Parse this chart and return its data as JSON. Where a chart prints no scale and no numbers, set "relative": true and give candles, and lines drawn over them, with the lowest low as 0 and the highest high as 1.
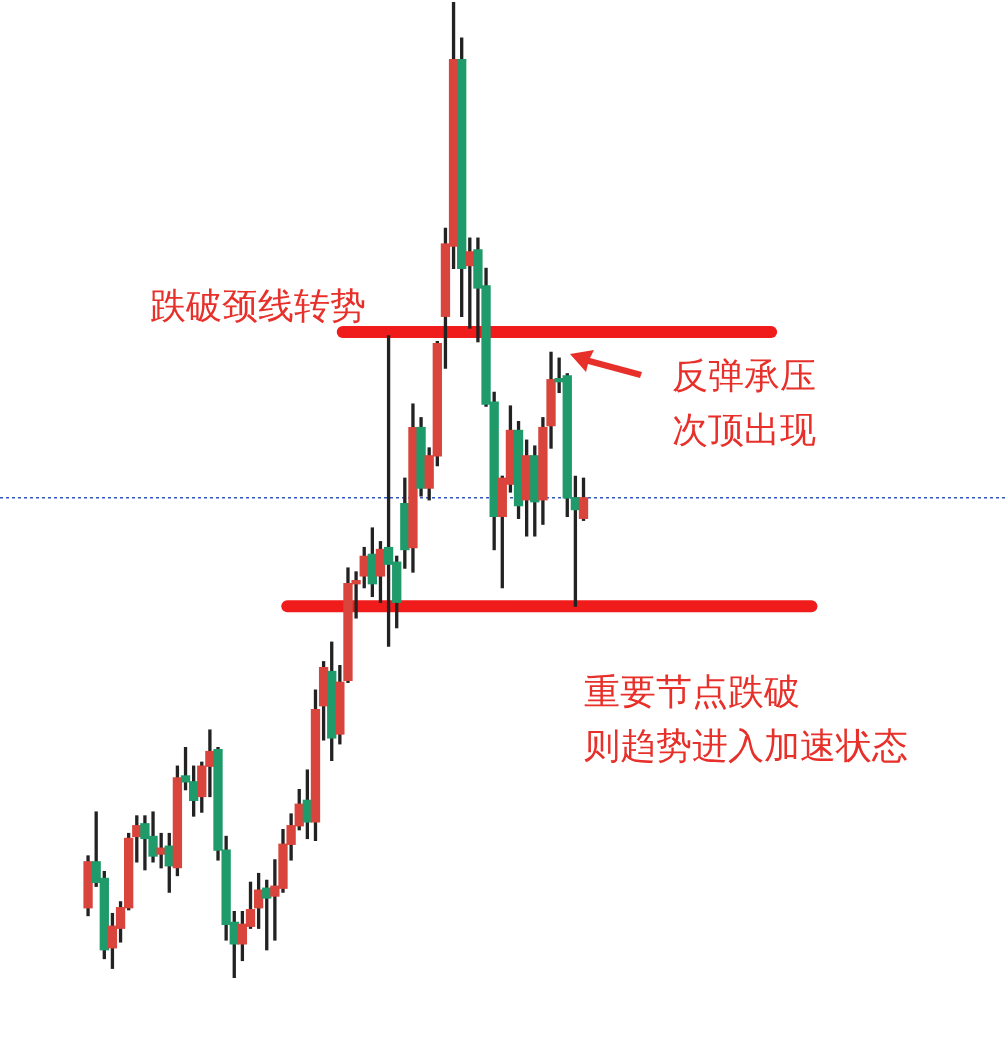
{
  "chart_data": {
    "type": "candlestick",
    "relative": true,
    "categories": [
      null,
      null,
      null,
      null,
      null,
      null,
      null,
      null,
      null,
      null,
      null,
      null,
      null,
      null,
      null,
      null,
      null,
      null,
      null,
      null,
      null,
      null,
      null,
      null,
      null,
      null,
      null,
      null,
      null,
      null,
      null,
      null,
      null,
      null,
      null,
      null,
      null,
      null,
      null,
      null,
      null,
      null,
      null,
      null,
      null,
      null,
      null,
      null,
      null,
      null,
      null,
      null,
      null,
      null,
      null,
      null,
      null,
      null,
      null,
      null,
      null,
      null
    ],
    "ohlc": [
      [
        0.072,
        0.125,
        0.064,
        0.119
      ],
      [
        0.119,
        0.17,
        0.094,
        0.098
      ],
      [
        0.102,
        0.109,
        0.02,
        0.029
      ],
      [
        0.031,
        0.066,
        0.01,
        0.053
      ],
      [
        0.051,
        0.078,
        0.037,
        0.072
      ],
      [
        0.072,
        0.148,
        0.07,
        0.143
      ],
      [
        0.145,
        0.166,
        0.119,
        0.156
      ],
      [
        0.158,
        0.166,
        0.111,
        0.143
      ],
      [
        0.145,
        0.17,
        0.119,
        0.125
      ],
      [
        0.127,
        0.148,
        0.113,
        0.133
      ],
      [
        0.135,
        0.148,
        0.088,
        0.115
      ],
      [
        0.113,
        0.217,
        0.105,
        0.205
      ],
      [
        0.207,
        0.236,
        0.193,
        0.201
      ],
      [
        0.201,
        0.217,
        0.166,
        0.182
      ],
      [
        0.186,
        0.221,
        0.17,
        0.217
      ],
      [
        0.217,
        0.254,
        0.186,
        0.232
      ],
      [
        0.234,
        0.236,
        0.121,
        0.131
      ],
      [
        0.131,
        0.145,
        0.039,
        0.055
      ],
      [
        0.057,
        0.068,
        0.0,
        0.035
      ],
      [
        0.035,
        0.068,
        0.018,
        0.055
      ],
      [
        0.053,
        0.098,
        0.051,
        0.07
      ],
      [
        0.072,
        0.107,
        0.051,
        0.09
      ],
      [
        0.092,
        0.1,
        0.029,
        0.082
      ],
      [
        0.084,
        0.121,
        0.039,
        0.094
      ],
      [
        0.092,
        0.152,
        0.088,
        0.137
      ],
      [
        0.137,
        0.168,
        0.121,
        0.156
      ],
      [
        0.156,
        0.193,
        0.152,
        0.178
      ],
      [
        0.182,
        0.213,
        0.143,
        0.16
      ],
      [
        0.16,
        0.295,
        0.141,
        0.275
      ],
      [
        0.279,
        0.324,
        0.244,
        0.318
      ],
      [
        0.314,
        0.344,
        0.223,
        0.246
      ],
      [
        0.25,
        0.32,
        0.24,
        0.303
      ],
      [
        0.305,
        0.42,
        0.303,
        0.404
      ],
      [
        0.404,
        0.416,
        0.369,
        0.406
      ],
      [
        0.412,
        0.441,
        0.4,
        0.432
      ],
      [
        0.434,
        0.461,
        0.391,
        0.404
      ],
      [
        0.412,
        0.447,
        0.385,
        0.439
      ],
      [
        0.441,
        0.658,
        0.34,
        0.424
      ],
      [
        0.426,
        0.432,
        0.359,
        0.385
      ],
      [
        0.486,
        0.512,
        0.42,
        0.439
      ],
      [
        0.441,
        0.588,
        0.416,
        0.564
      ],
      [
        0.564,
        0.574,
        0.494,
        0.502
      ],
      [
        0.502,
        0.543,
        0.49,
        0.535
      ],
      [
        0.535,
        0.652,
        0.525,
        0.65
      ],
      [
        0.678,
        0.768,
        0.625,
        0.752
      ],
      [
        0.75,
        1.0,
        0.727,
        0.941
      ],
      [
        0.941,
        0.963,
        0.678,
        0.727
      ],
      [
        0.73,
        0.758,
        0.666,
        0.744
      ],
      [
        0.746,
        0.758,
        0.652,
        0.707
      ],
      [
        0.709,
        0.727,
        0.586,
        0.588
      ],
      [
        0.59,
        0.6,
        0.439,
        0.473
      ],
      [
        0.473,
        0.514,
        0.4,
        0.512
      ],
      [
        0.506,
        0.586,
        0.498,
        0.561
      ],
      [
        0.561,
        0.57,
        0.471,
        0.484
      ],
      [
        0.49,
        0.551,
        0.453,
        0.535
      ],
      [
        0.535,
        0.545,
        0.453,
        0.488
      ],
      [
        0.49,
        0.574,
        0.465,
        0.564
      ],
      [
        0.566,
        0.641,
        0.543,
        0.613
      ],
      [
        0.613,
        0.635,
        0.6,
        0.611
      ],
      [
        0.617,
        0.619,
        0.473,
        0.492
      ],
      [
        0.492,
        0.514,
        0.381,
        0.48
      ],
      [
        0.471,
        0.512,
        0.469,
        0.492
      ]
    ],
    "colors": [
      "#d9453c",
      "#1f9a6a",
      "#1f9a6a",
      "#d9453c",
      "#d9453c",
      "#d9453c",
      "#d9453c",
      "#1f9a6a",
      "#1f9a6a",
      "#d9453c",
      "#1f9a6a",
      "#d9453c",
      "#1f9a6a",
      "#1f9a6a",
      "#d9453c",
      "#d9453c",
      "#1f9a6a",
      "#1f9a6a",
      "#1f9a6a",
      "#d9453c",
      "#d9453c",
      "#d9453c",
      "#1f9a6a",
      "#d9453c",
      "#d9453c",
      "#d9453c",
      "#d9453c",
      "#1f9a6a",
      "#d9453c",
      "#d9453c",
      "#1f9a6a",
      "#d9453c",
      "#d9453c",
      "#d9453c",
      "#d9453c",
      "#1f9a6a",
      "#d9453c",
      "#1f9a6a",
      "#1f9a6a",
      "#1f9a6a",
      "#d9453c",
      "#1f9a6a",
      "#d9453c",
      "#d9453c",
      "#d9453c",
      "#d9453c",
      "#1f9a6a",
      "#d9453c",
      "#1f9a6a",
      "#1f9a6a",
      "#1f9a6a",
      "#d9453c",
      "#d9453c",
      "#1f9a6a",
      "#d9453c",
      "#1f9a6a",
      "#d9453c",
      "#d9453c",
      "#1f9a6a",
      "#1f9a6a",
      "#1f9a6a",
      "#d9453c"
    ],
    "ref_lines": [
      {
        "axis": "y",
        "value": 0.662,
        "label": "跌破颈线转势",
        "color": "#f01c1c"
      },
      {
        "axis": "y",
        "value": 0.381,
        "label": "重要节点跌破",
        "color": "#f01c1c"
      },
      {
        "axis": "y",
        "value": 0.492,
        "color": "#3355bb",
        "line_style": "dotted"
      }
    ],
    "annotations": [
      "反弹承压次顶出现",
      "则趋势进入加速状态"
    ],
    "legend": false
  }
}
